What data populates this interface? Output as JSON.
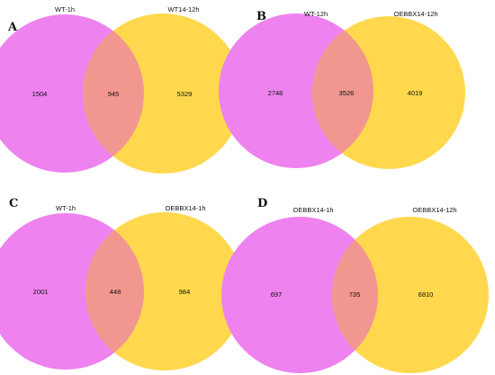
{
  "colors": {
    "left_set": "#ee82ee",
    "right_set": "#ffd84d",
    "overlap": "#f2978f"
  },
  "panels": [
    {
      "letter": "A",
      "left_label": "WT-1h",
      "right_label": "WT14-12h",
      "left_only": "1504",
      "both": "945",
      "right_only": "5329"
    },
    {
      "letter": "B",
      "left_label": "WT-12h",
      "right_label": "OEBBX14-12h",
      "left_only": "2748",
      "both": "3526",
      "right_only": "4019"
    },
    {
      "letter": "C",
      "left_label": "WT-1h",
      "right_label": "OEBBX14-1h",
      "left_only": "2001",
      "both": "448",
      "right_only": "984"
    },
    {
      "letter": "D",
      "left_label": "OEBBX14-1h",
      "right_label": "OEBBX14-12h",
      "left_only": "697",
      "both": "735",
      "right_only": "6810"
    }
  ]
}
